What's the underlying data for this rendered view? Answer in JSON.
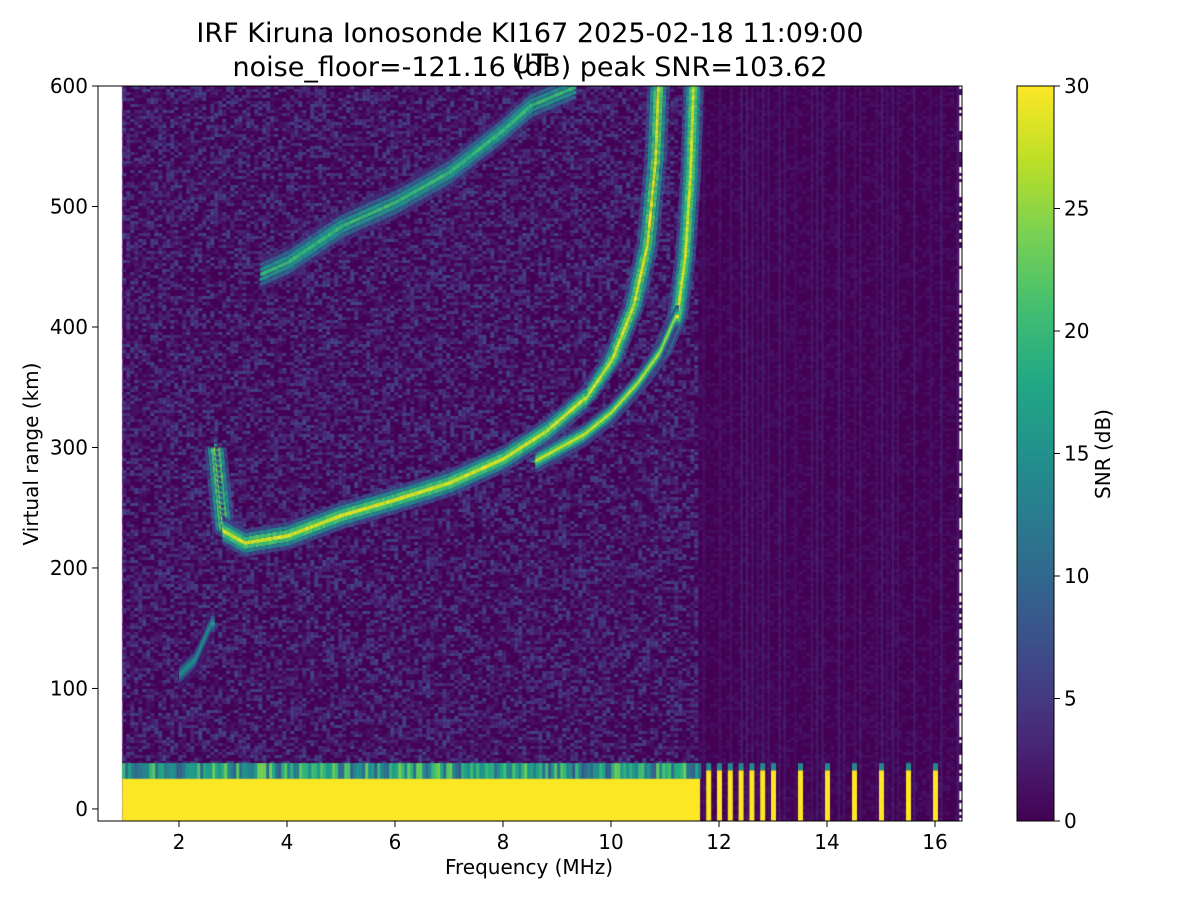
{
  "chart_data": {
    "type": "heatmap",
    "title": "IRF Kiruna Ionosonde KI167 2025-02-18 11:09:00  UT",
    "subtitle": "noise_floor=-121.16 (dB) peak SNR=103.62",
    "xlabel": "Frequency (MHz)",
    "ylabel": "Virtual range (km)",
    "colorbar_label": "SNR (dB)",
    "colormap": "viridis",
    "xlim": [
      0.5,
      16.5
    ],
    "ylim": [
      -10,
      600
    ],
    "clim": [
      0,
      30
    ],
    "x_ticks": [
      "2",
      "4",
      "6",
      "8",
      "10",
      "12",
      "14",
      "16"
    ],
    "y_ticks": [
      "0",
      "100",
      "200",
      "300",
      "400",
      "500",
      "600"
    ],
    "colorbar_ticks": [
      "0",
      "5",
      "10",
      "15",
      "20",
      "25",
      "30"
    ],
    "data_freq_range": [
      0.95,
      16.45
    ],
    "features": {
      "ground_layer": {
        "freq_range": [
          0.95,
          11.65
        ],
        "range_km": [
          -10,
          25
        ],
        "snr_db": 30
      },
      "ground_layer_fringe": {
        "freq_range": [
          0.95,
          11.65
        ],
        "range_km": [
          25,
          38
        ],
        "snr_db": 18
      },
      "discrete_channels": {
        "freqs_mhz": [
          11.8,
          12.0,
          12.2,
          12.4,
          12.6,
          12.8,
          13.0,
          13.5,
          14.0,
          14.5,
          15.0,
          15.5,
          16.0
        ],
        "range_km": [
          -10,
          32
        ],
        "snr_db": 30
      },
      "sporadic_e_trace": {
        "freq_mhz": [
          2.0,
          2.3,
          2.6
        ],
        "range_km": [
          112,
          125,
          155
        ],
        "snr_db": 18
      },
      "f_layer_o_trace": {
        "freq_mhz": [
          2.65,
          2.8,
          3.2,
          4.0,
          5.0,
          6.0,
          7.0,
          8.0,
          8.8,
          9.5,
          10.0,
          10.4,
          10.65,
          10.8,
          10.85
        ],
        "range_km": [
          300,
          232,
          222,
          228,
          245,
          258,
          272,
          292,
          315,
          342,
          375,
          420,
          470,
          540,
          600
        ],
        "snr_db": 30
      },
      "f_layer_x_trace": {
        "freq_mhz": [
          8.6,
          9.5,
          10.0,
          10.5,
          10.9,
          11.2,
          11.35,
          11.45,
          11.5
        ],
        "range_km": [
          290,
          312,
          330,
          355,
          380,
          410,
          460,
          530,
          600
        ],
        "snr_db": 30
      },
      "multihop_echo": {
        "freq_mhz": [
          3.5,
          4.0,
          5.0,
          6.0,
          7.0,
          8.0,
          8.5,
          9.3
        ],
        "range_km": [
          445,
          455,
          485,
          505,
          530,
          565,
          585,
          600
        ],
        "snr_db": 22
      }
    }
  }
}
